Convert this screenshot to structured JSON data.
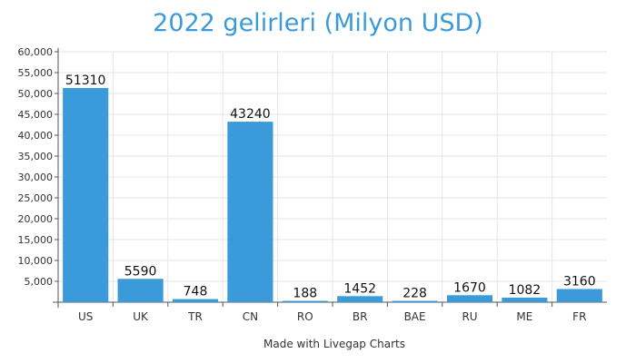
{
  "chart_data": {
    "type": "bar",
    "title": "2022 gelirleri (Milyon USD)",
    "xlabel": "",
    "ylabel": "",
    "categories": [
      "US",
      "UK",
      "TR",
      "CN",
      "RO",
      "BR",
      "BAE",
      "RU",
      "ME",
      "FR"
    ],
    "values": [
      51310,
      5590,
      748,
      43240,
      188,
      1452,
      228,
      1670,
      1082,
      3160
    ],
    "ylim": [
      0,
      60000
    ],
    "yticks": [
      "5,000",
      "10,000",
      "15,000",
      "20,000",
      "25,000",
      "30,000",
      "35,000",
      "40,000",
      "45,000",
      "50,000",
      "55,000",
      "60,000"
    ],
    "grid": true,
    "legend": "none",
    "bar_color": "#3b9ad9"
  },
  "footer": {
    "credit": "Made with Livegap Charts"
  }
}
